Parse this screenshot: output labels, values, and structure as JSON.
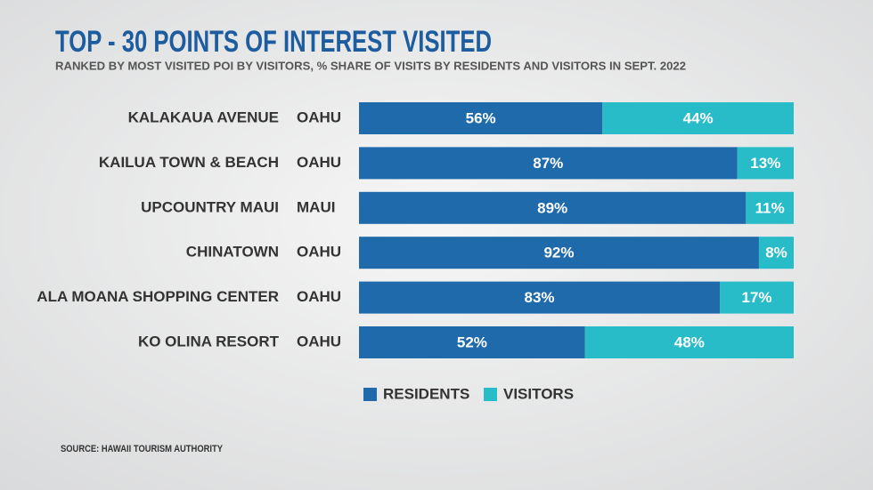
{
  "chart_data": {
    "type": "stacked-bar-horizontal",
    "title": "TOP - 30 POINTS OF INTEREST VISITED",
    "subtitle": "RANKED BY MOST VISITED POI BY VISITORS, % SHARE OF VISITS BY RESIDENTS AND VISITORS IN SEPT. 2022",
    "categories": [
      "KALAKAUA AVENUE",
      "KAILUA TOWN & BEACH",
      "UPCOUNTRY MAUI",
      "CHINATOWN",
      "ALA MOANA SHOPPING CENTER",
      "KO OLINA RESORT"
    ],
    "islands": [
      "OAHU",
      "OAHU",
      "MAUI",
      "OAHU",
      "OAHU",
      "OAHU"
    ],
    "xlim": [
      0,
      100
    ],
    "series": [
      {
        "name": "RESIDENTS",
        "color": "#1f6aab",
        "values": [
          56,
          87,
          89,
          92,
          83,
          52
        ],
        "value_labels": [
          "56%",
          "87%",
          "89%",
          "92%",
          "83%",
          "52%"
        ]
      },
      {
        "name": "VISITORS",
        "color": "#27bcc8",
        "values": [
          44,
          13,
          11,
          8,
          17,
          48
        ],
        "value_labels": [
          "44%",
          "13%",
          "11%",
          "8%",
          "17%",
          "48%"
        ]
      }
    ],
    "legend": "bottom",
    "source": "SOURCE: HAWAII TOURISM AUTHORITY"
  }
}
